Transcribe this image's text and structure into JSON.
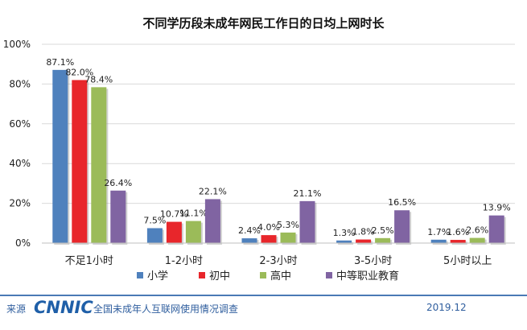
{
  "chart_data": {
    "type": "bar",
    "title": "不同学历段未成年网民工作日的日均上网时长",
    "categories": [
      "不足1小时",
      "1-2小时",
      "2-3小时",
      "3-5小时",
      "5小时以上"
    ],
    "series": [
      {
        "name": "小学",
        "color": "#4f81bd",
        "values": [
          87.1,
          7.5,
          2.4,
          1.3,
          1.7
        ]
      },
      {
        "name": "初中",
        "color": "#e8262b",
        "values": [
          82.0,
          10.7,
          4.0,
          1.8,
          1.6
        ]
      },
      {
        "name": "高中",
        "color": "#9bbb59",
        "values": [
          78.4,
          11.1,
          5.3,
          2.5,
          2.6
        ]
      },
      {
        "name": "中等职业教育",
        "color": "#8064a2",
        "values": [
          26.4,
          22.1,
          21.1,
          16.5,
          13.9
        ]
      }
    ],
    "y_ticks": [
      "0%",
      "20%",
      "40%",
      "60%",
      "80%",
      "100%"
    ],
    "ylim": [
      0,
      100
    ],
    "value_suffix": "%",
    "legend_position": "bottom",
    "grid": true
  },
  "footer": {
    "source_label": "来源",
    "logo": "CNNIC",
    "survey": "全国未成年人互联网使用情况调查",
    "date": "2019.12"
  }
}
